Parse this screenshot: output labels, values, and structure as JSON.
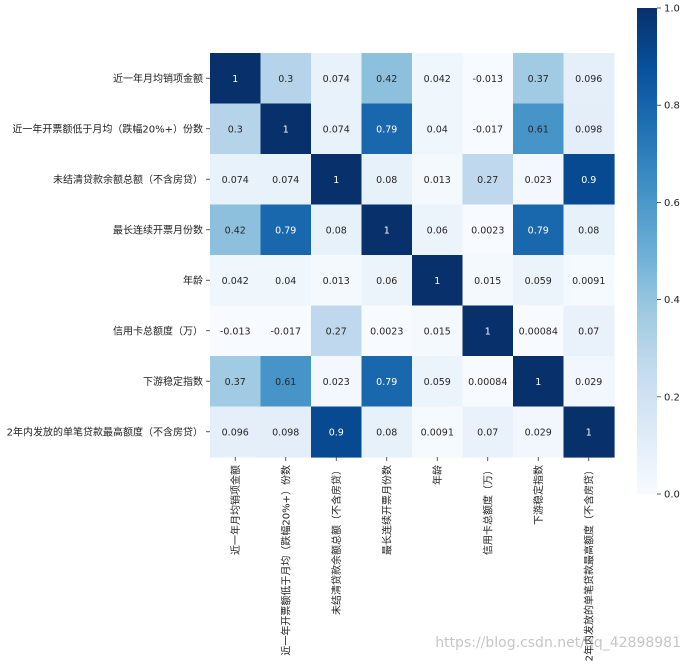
{
  "chart_data": {
    "type": "heatmap",
    "rows": [
      "近一年月均销项金额",
      "近一年开票额低于月均（跌幅20%+）份数",
      "未结清贷款余额总额（不含房贷）",
      "最长连续开票月份数",
      "年龄",
      "信用卡总额度（万）",
      "下游稳定指数",
      "2年内发放的单笔贷款最高额度（不含房贷）"
    ],
    "columns": [
      "近一年月均销项金额",
      "近一年开票额低于月均（跌幅20%+）份数",
      "未结清贷款余额总额（不含房贷）",
      "最长连续开票月份数",
      "年龄",
      "信用卡总额度（万）",
      "下游稳定指数",
      "2年内发放的单笔贷款最高额度（不含房贷）"
    ],
    "values": [
      [
        1,
        0.3,
        0.074,
        0.42,
        0.042,
        -0.013,
        0.37,
        0.096
      ],
      [
        0.3,
        1,
        0.074,
        0.79,
        0.04,
        -0.017,
        0.61,
        0.098
      ],
      [
        0.074,
        0.074,
        1,
        0.08,
        0.013,
        0.27,
        0.023,
        0.9
      ],
      [
        0.42,
        0.79,
        0.08,
        1,
        0.06,
        0.0023,
        0.79,
        0.08
      ],
      [
        0.042,
        0.04,
        0.013,
        0.06,
        1,
        0.015,
        0.059,
        0.0091
      ],
      [
        -0.013,
        -0.017,
        0.27,
        0.0023,
        0.015,
        1,
        0.00084,
        0.07
      ],
      [
        0.37,
        0.61,
        0.023,
        0.79,
        0.059,
        0.00084,
        1,
        0.029
      ],
      [
        0.096,
        0.098,
        0.9,
        0.08,
        0.0091,
        0.07,
        0.029,
        1
      ]
    ],
    "cell_labels": [
      [
        "1",
        "0.3",
        "0.074",
        "0.42",
        "0.042",
        "-0.013",
        "0.37",
        "0.096"
      ],
      [
        "0.3",
        "1",
        "0.074",
        "0.79",
        "0.04",
        "-0.017",
        "0.61",
        "0.098"
      ],
      [
        "0.074",
        "0.074",
        "1",
        "0.08",
        "0.013",
        "0.27",
        "0.023",
        "0.9"
      ],
      [
        "0.42",
        "0.79",
        "0.08",
        "1",
        "0.06",
        "0.0023",
        "0.79",
        "0.08"
      ],
      [
        "0.042",
        "0.04",
        "0.013",
        "0.06",
        "1",
        "0.015",
        "0.059",
        "0.0091"
      ],
      [
        "-0.013",
        "-0.017",
        "0.27",
        "0.0023",
        "0.015",
        "1",
        "0.00084",
        "0.07"
      ],
      [
        "0.37",
        "0.61",
        "0.023",
        "0.79",
        "0.059",
        "0.00084",
        "1",
        "0.029"
      ],
      [
        "0.096",
        "0.098",
        "0.9",
        "0.08",
        "0.0091",
        "0.07",
        "0.029",
        "1"
      ]
    ],
    "colormap": "Blues",
    "colormap_stops": [
      "#f7fbff",
      "#deebf7",
      "#c6dbef",
      "#9ecae1",
      "#6baed6",
      "#4292c6",
      "#2171b5",
      "#08519c",
      "#08306b"
    ],
    "vmin": 0,
    "vmax": 1,
    "colorbar_ticks": [
      "0.0",
      "0.2",
      "0.4",
      "0.6",
      "0.8",
      "1.0"
    ],
    "title": "",
    "xlabel": "",
    "ylabel": ""
  },
  "watermark": "https://blog.csdn.net/qq_42898981"
}
